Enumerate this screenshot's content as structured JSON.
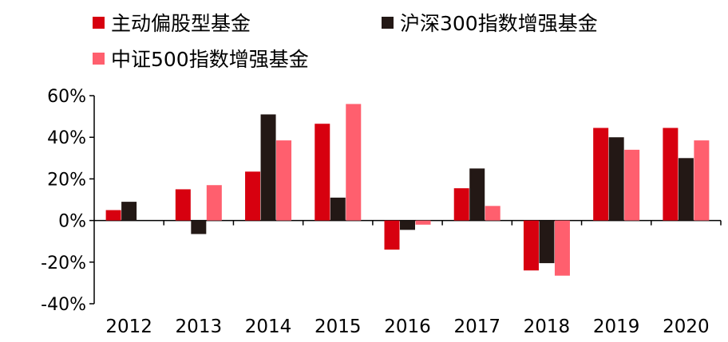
{
  "chart_data": {
    "type": "bar",
    "categories": [
      "2012",
      "2013",
      "2014",
      "2015",
      "2016",
      "2017",
      "2018",
      "2019",
      "2020"
    ],
    "series": [
      {
        "name": "主动偏股型基金",
        "color": "#d7000f",
        "values": [
          5,
          15,
          23.5,
          46.5,
          -14,
          15.5,
          -24,
          44.5,
          44.5
        ]
      },
      {
        "name": "沪深300指数增强基金",
        "color": "#231815",
        "values": [
          9,
          -6.5,
          51,
          11,
          -4.5,
          25,
          -20.5,
          40,
          30
        ]
      },
      {
        "name": "中证500指数增强基金",
        "color": "#ff5f6e",
        "values": [
          0,
          17,
          38.5,
          56,
          -2,
          7,
          -26.5,
          34,
          38.5
        ]
      }
    ],
    "yticks": [
      "60%",
      "40%",
      "20%",
      "0%",
      "-20%",
      "-40%"
    ],
    "ylim": [
      -40,
      60
    ],
    "legend_position": "top-left",
    "grid": false
  }
}
